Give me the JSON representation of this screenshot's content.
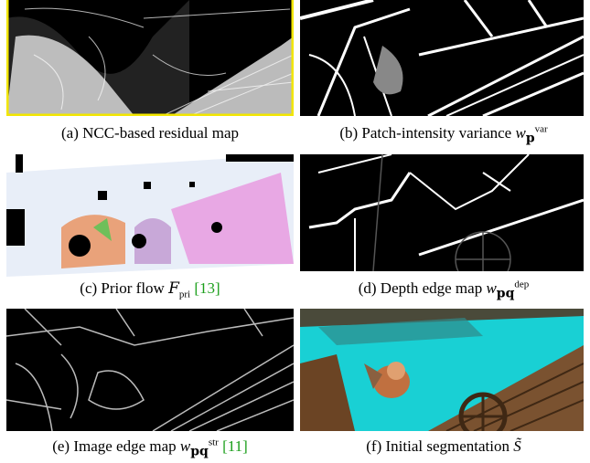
{
  "figure": {
    "panels": [
      {
        "id": "a",
        "caption": "(a) NCC-based residual map"
      },
      {
        "id": "b",
        "caption_prefix": "(b) Patch-intensity variance",
        "symbol": "w",
        "subscript": "p",
        "superscript": "var"
      },
      {
        "id": "c",
        "caption_prefix": "(c) Prior flow",
        "symbol": "F",
        "subscript": "pri",
        "cite": "[13]"
      },
      {
        "id": "d",
        "caption_prefix": "(d) Depth edge map",
        "symbol": "w",
        "subscript": "pq",
        "superscript": "dep"
      },
      {
        "id": "e",
        "caption_prefix": "(e) Image edge map",
        "symbol": "w",
        "subscript": "pq",
        "superscript": "str",
        "cite": "[11]"
      },
      {
        "id": "f",
        "caption_prefix": "(f) Initial segmentation",
        "symbol": "S̃"
      }
    ],
    "colors": {
      "border_highlight": "#f2e600",
      "cite": "#1a9e1a",
      "sky": "#19d0d4",
      "wood": "#6b4424"
    }
  }
}
